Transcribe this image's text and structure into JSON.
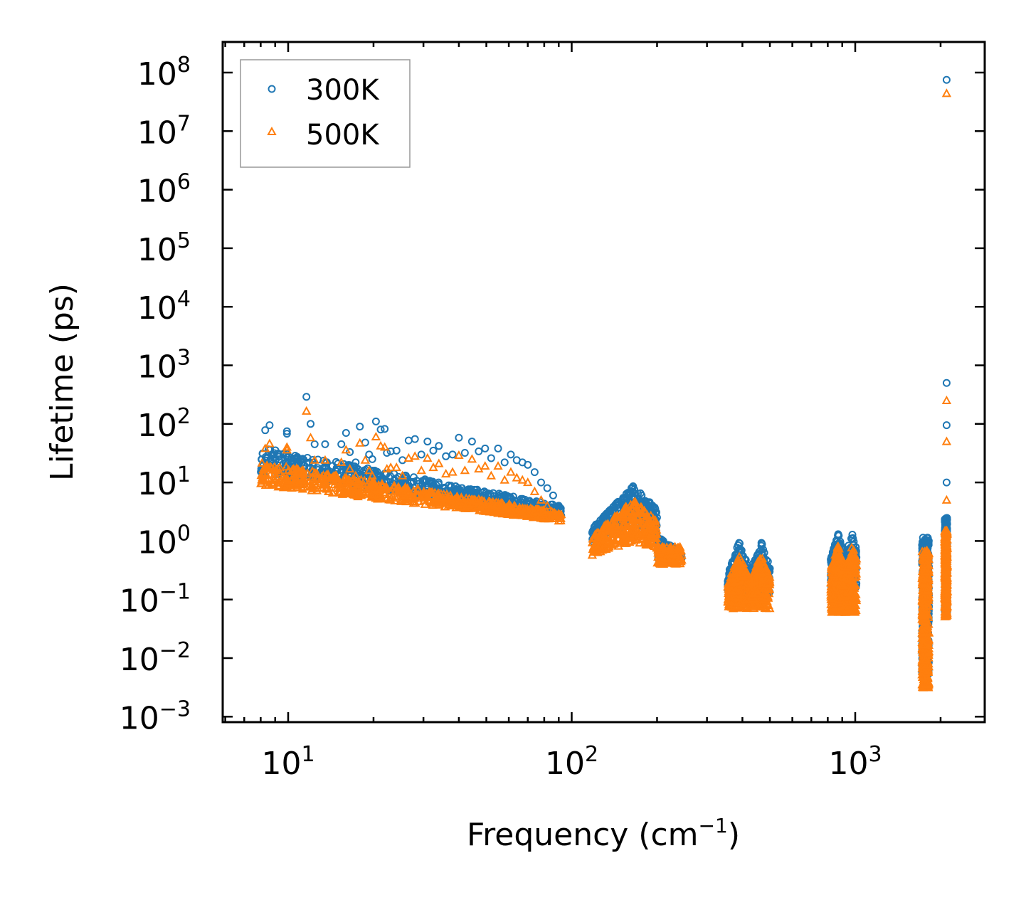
{
  "chart_data": {
    "type": "scatter",
    "xscale": "log",
    "yscale": "log",
    "xlabel": "Frequency (cm",
    "xlabel_sup": "−1",
    "xlabel_suffix": ")",
    "ylabel": "Lifetime (ps)",
    "xlim": [
      6,
      3000
    ],
    "ylim": [
      0.0008,
      300000000
    ],
    "x_ticks": [
      {
        "value": 10,
        "base": "10",
        "exp": "1"
      },
      {
        "value": 100,
        "base": "10",
        "exp": "2"
      },
      {
        "value": 1000,
        "base": "10",
        "exp": "3"
      }
    ],
    "y_ticks": [
      {
        "value": 100000000,
        "base": "10",
        "exp": "8"
      },
      {
        "value": 10000000,
        "base": "10",
        "exp": "7"
      },
      {
        "value": 1000000,
        "base": "10",
        "exp": "6"
      },
      {
        "value": 100000,
        "base": "10",
        "exp": "5"
      },
      {
        "value": 10000,
        "base": "10",
        "exp": "4"
      },
      {
        "value": 1000,
        "base": "10",
        "exp": "3"
      },
      {
        "value": 100,
        "base": "10",
        "exp": "2"
      },
      {
        "value": 10,
        "base": "10",
        "exp": "1"
      },
      {
        "value": 1,
        "base": "10",
        "exp": "0"
      },
      {
        "value": 0.1,
        "base": "10",
        "exp": "−1"
      },
      {
        "value": 0.01,
        "base": "10",
        "exp": "−2"
      },
      {
        "value": 0.001,
        "base": "10",
        "exp": "−3"
      }
    ],
    "legend": {
      "position": "upper-left"
    },
    "series": [
      {
        "name": "300K",
        "color": "#1f77b4",
        "marker": "circle",
        "points": [
          [
            8.3,
            78
          ],
          [
            8.6,
            95
          ],
          [
            9.9,
            75
          ],
          [
            9.9,
            68
          ],
          [
            11.6,
            290
          ],
          [
            12.0,
            100
          ],
          [
            12.4,
            45
          ],
          [
            13.5,
            45
          ],
          [
            15.4,
            45
          ],
          [
            16.0,
            70
          ],
          [
            16.5,
            33
          ],
          [
            17.3,
            22
          ],
          [
            17.9,
            90
          ],
          [
            18.7,
            48
          ],
          [
            19.3,
            30
          ],
          [
            19.8,
            25
          ],
          [
            20.4,
            110
          ],
          [
            21.2,
            80
          ],
          [
            21.9,
            82
          ],
          [
            22.3,
            32
          ],
          [
            23.0,
            34
          ],
          [
            24.1,
            35
          ],
          [
            25.3,
            24
          ],
          [
            26.6,
            52
          ],
          [
            28.0,
            55
          ],
          [
            29.5,
            30
          ],
          [
            31.0,
            50
          ],
          [
            32.5,
            35
          ],
          [
            34.0,
            42
          ],
          [
            36.0,
            28
          ],
          [
            38.0,
            30
          ],
          [
            40.0,
            58
          ],
          [
            42.0,
            32
          ],
          [
            44.5,
            50
          ],
          [
            47.0,
            34
          ],
          [
            49.5,
            38
          ],
          [
            52.0,
            26
          ],
          [
            55.0,
            38
          ],
          [
            58.0,
            22
          ],
          [
            61.0,
            30
          ],
          [
            64.0,
            24
          ],
          [
            67.0,
            22
          ],
          [
            70.0,
            20
          ],
          [
            74.0,
            15
          ],
          [
            78.0,
            10
          ],
          [
            82.0,
            8
          ],
          [
            86.0,
            6
          ],
          [
            90.0,
            4
          ],
          [
            2100,
            75000000
          ],
          [
            2100,
            500
          ],
          [
            2100,
            95
          ],
          [
            2100,
            10
          ],
          [
            1760,
            0.009
          ]
        ]
      },
      {
        "name": "500K",
        "color": "#ff7f0e",
        "marker": "triangle",
        "points": [
          [
            8.3,
            38
          ],
          [
            8.6,
            46
          ],
          [
            9.9,
            40
          ],
          [
            9.9,
            36
          ],
          [
            11.6,
            165
          ],
          [
            12.0,
            58
          ],
          [
            12.4,
            24
          ],
          [
            13.5,
            24
          ],
          [
            15.4,
            22
          ],
          [
            16.0,
            36
          ],
          [
            16.5,
            17
          ],
          [
            17.3,
            13
          ],
          [
            17.9,
            47
          ],
          [
            18.7,
            24
          ],
          [
            19.3,
            16
          ],
          [
            19.8,
            13
          ],
          [
            20.4,
            60
          ],
          [
            21.2,
            42
          ],
          [
            21.9,
            40
          ],
          [
            22.3,
            17
          ],
          [
            23.0,
            18
          ],
          [
            24.1,
            18
          ],
          [
            25.3,
            13
          ],
          [
            26.6,
            26
          ],
          [
            28.0,
            28
          ],
          [
            29.5,
            16
          ],
          [
            31.0,
            26
          ],
          [
            32.5,
            18
          ],
          [
            34.0,
            21
          ],
          [
            36.0,
            14
          ],
          [
            38.0,
            15
          ],
          [
            40.0,
            29
          ],
          [
            42.0,
            16
          ],
          [
            44.5,
            25
          ],
          [
            47.0,
            17
          ],
          [
            49.5,
            19
          ],
          [
            52.0,
            13
          ],
          [
            55.0,
            19
          ],
          [
            58.0,
            11
          ],
          [
            61.0,
            15
          ],
          [
            64.0,
            12
          ],
          [
            67.0,
            11
          ],
          [
            70.0,
            10
          ],
          [
            74.0,
            7
          ],
          [
            78.0,
            5
          ],
          [
            82.0,
            4
          ],
          [
            86.0,
            3
          ],
          [
            90.0,
            2.2
          ],
          [
            2100,
            44000000
          ],
          [
            2100,
            250
          ],
          [
            2100,
            50
          ],
          [
            2100,
            5
          ],
          [
            1760,
            0.004
          ]
        ]
      }
    ],
    "clusters": [
      {
        "x_range": [
          8,
          92
        ],
        "top": [
          80,
          20
        ],
        "bottom": [
          30,
          2.5
        ],
        "step_top_300": 1.0,
        "step_bottom_500": 1.0
      },
      {
        "x_range": [
          118,
          245
        ],
        "shape": "peaked",
        "peak_x": 165,
        "peak_300": 9,
        "peak_500": 5,
        "edge_300": 0.9,
        "edge_500": 0.6,
        "floor_500": 0.4
      },
      {
        "x_range": [
          355,
          500
        ],
        "shape": "double",
        "peak1_x": 390,
        "peak2_x": 465,
        "peak_300": 1.0,
        "low_300": 0.12,
        "low_500": 0.07
      },
      {
        "x_range": [
          820,
          1010
        ],
        "shape": "double",
        "peak1_x": 870,
        "peak2_x": 975,
        "peak_300": 1.4,
        "low_300": 0.15,
        "low_500": 0.06
      },
      {
        "x_range": [
          1720,
          1820
        ],
        "shape": "spike",
        "top_300": 1.2,
        "bottom_500": 0.003
      },
      {
        "x_range": [
          2070,
          2110
        ],
        "shape": "column",
        "top_300": 2.5,
        "bottom_500": 0.05
      }
    ]
  }
}
